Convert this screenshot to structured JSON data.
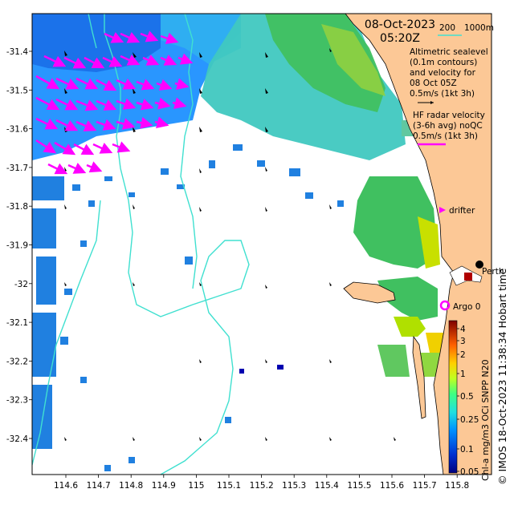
{
  "title": {
    "date": "08-Oct-2023",
    "time": "05:20Z"
  },
  "isobath_legend": {
    "depth1": "200",
    "depth2": "1000m",
    "color": "#40e0d0"
  },
  "altimetry_legend": {
    "line1": "Altimetric sealevel",
    "line2": "(0.1m contours)",
    "line3": "and velocity for",
    "line4": "08 Oct 05Z",
    "line5": "0.5m/s (1kt 3h)"
  },
  "hf_radar_legend": {
    "line1": "HF radar velocity",
    "line2": "(3-6h avg) noQC",
    "line3": "0.5m/s (1kt 3h)",
    "color": "#ff00ff"
  },
  "drifter_legend": {
    "label": "drifter",
    "color": "#ff00ff"
  },
  "argo": {
    "label": "Argo 0",
    "color": "#ff00ff"
  },
  "city": {
    "label": "Perth"
  },
  "credit": "© IMOS 18-Oct-2023 11:38:34 Hobart time",
  "axes": {
    "x_ticks": [
      "114.6",
      "114.7",
      "114.8",
      "114.9",
      "115",
      "115.1",
      "115.2",
      "115.3",
      "115.4",
      "115.5",
      "115.6",
      "115.7",
      "115.8"
    ],
    "y_ticks": [
      "-31.4",
      "-31.5",
      "-31.6",
      "-31.7",
      "-31.8",
      "-31.9",
      "-32",
      "-32.1",
      "-32.2",
      "-32.3",
      "-32.4"
    ]
  },
  "colorbar": {
    "label": "Chl-a mg/m3 OCi SNPP N20",
    "ticks": [
      "4",
      "3",
      "2",
      "1",
      "0.5",
      "0.25",
      "0.1",
      "0.05"
    ],
    "colors": [
      "#00007f",
      "#0040ff",
      "#00bfff",
      "#40ffbf",
      "#80ff00",
      "#ffd000",
      "#ff6000",
      "#7f0000"
    ]
  },
  "colors": {
    "land": "#fcc896",
    "isobath": "#40e0d0",
    "high_chl": "#00b050",
    "mid_chl": "#40c8c0",
    "low_chl": "#2080e0"
  }
}
